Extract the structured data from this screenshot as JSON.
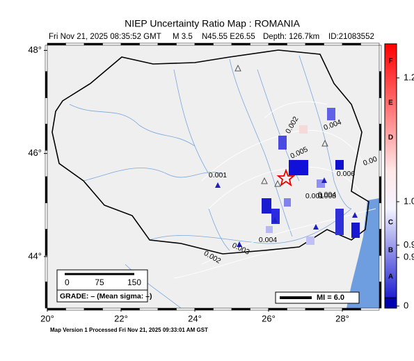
{
  "title": "NIEP Uncertainty Ratio Map : ROMANIA",
  "subtitle": {
    "time": "Fri Nov 21, 2025 08:35:52 GMT",
    "magnitude": "M 3.5",
    "location": "N45.55 E26.55",
    "depth": "Depth: 126.7km",
    "id": "ID:21083552"
  },
  "map": {
    "lonlim": [
      20,
      29
    ],
    "latlim": [
      43,
      48.1
    ],
    "lon_ticks": [
      {
        "value": 20,
        "label": "20°"
      },
      {
        "value": 22,
        "label": "22°"
      },
      {
        "value": 24,
        "label": "24°"
      },
      {
        "value": 26,
        "label": "26°"
      },
      {
        "value": 28,
        "label": "28°"
      }
    ],
    "lat_ticks": [
      {
        "value": 44,
        "label": "44°"
      },
      {
        "value": 46,
        "label": "46°"
      },
      {
        "value": 48,
        "label": "48°"
      }
    ],
    "contour_labels": [
      "0.001",
      "0.002",
      "0.005",
      "0.004",
      "0.004",
      "0.003",
      "0.002",
      "0.004",
      "0.006",
      "0.001",
      "0.008",
      "0.00"
    ],
    "scale_bar": [
      0,
      75,
      150
    ],
    "grade": "GRADE: – (Mean sigma: –)",
    "mi_legend": "MI = 6.0"
  },
  "colorbar": {
    "lim": [
      0.845,
      1.255
    ],
    "ticks": [
      {
        "value": 1.2,
        "label": "1.2"
      },
      {
        "value": 1.0,
        "label": "1.0"
      },
      {
        "value": 0.93,
        "label": "0.9"
      },
      {
        "value": 0.91,
        "label": "0.9"
      }
    ],
    "bottom_tick": 0,
    "grades": [
      "F",
      "E",
      "D",
      "C",
      "B",
      "A"
    ]
  },
  "footer": "Map Version 1 Processed Fri Nov 21, 2025 09:33:01 AM GST"
}
